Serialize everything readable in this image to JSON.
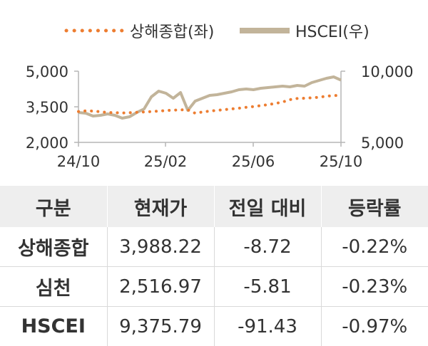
{
  "chart_data": {
    "type": "line",
    "x_ticks": [
      "24/10",
      "25/02",
      "25/06",
      "25/10"
    ],
    "y_left": {
      "ticks": [
        "5,000",
        "3,500",
        "2,000"
      ],
      "range": [
        2000,
        5000
      ]
    },
    "y_right": {
      "ticks": [
        "10,000",
        "5,000"
      ],
      "range": [
        5000,
        10000
      ]
    },
    "series": [
      {
        "name": "상해종합(좌)",
        "axis": "left",
        "color": "#ed7d31",
        "style": "dotted",
        "values": [
          3300,
          3330,
          3320,
          3290,
          3260,
          3250,
          3240,
          3250,
          3270,
          3280,
          3300,
          3320,
          3340,
          3360,
          3370,
          3370,
          3230,
          3280,
          3320,
          3350,
          3380,
          3410,
          3440,
          3480,
          3510,
          3550,
          3590,
          3640,
          3700,
          3800,
          3850,
          3860,
          3880,
          3900,
          3950,
          3970,
          3990
        ]
      },
      {
        "name": "HSCEI(우)",
        "axis": "right",
        "color": "#c2b49a",
        "style": "solid",
        "values": [
          7100,
          7050,
          6850,
          6900,
          7000,
          6900,
          6700,
          6800,
          7100,
          7350,
          8200,
          8600,
          8450,
          8100,
          8500,
          7250,
          7900,
          8100,
          8300,
          8350,
          8450,
          8550,
          8700,
          8750,
          8700,
          8800,
          8850,
          8900,
          8950,
          8900,
          9000,
          8950,
          9200,
          9350,
          9500,
          9600,
          9375
        ]
      }
    ]
  },
  "table": {
    "headers": [
      "구분",
      "현재가",
      "전일 대비",
      "등락률"
    ],
    "rows": [
      [
        "상해종합",
        "3,988.22",
        "-8.72",
        "-0.22%"
      ],
      [
        "심천",
        "2,516.97",
        "-5.81",
        "-0.23%"
      ],
      [
        "HSCEI",
        "9,375.79",
        "-91.43",
        "-0.97%"
      ]
    ]
  }
}
